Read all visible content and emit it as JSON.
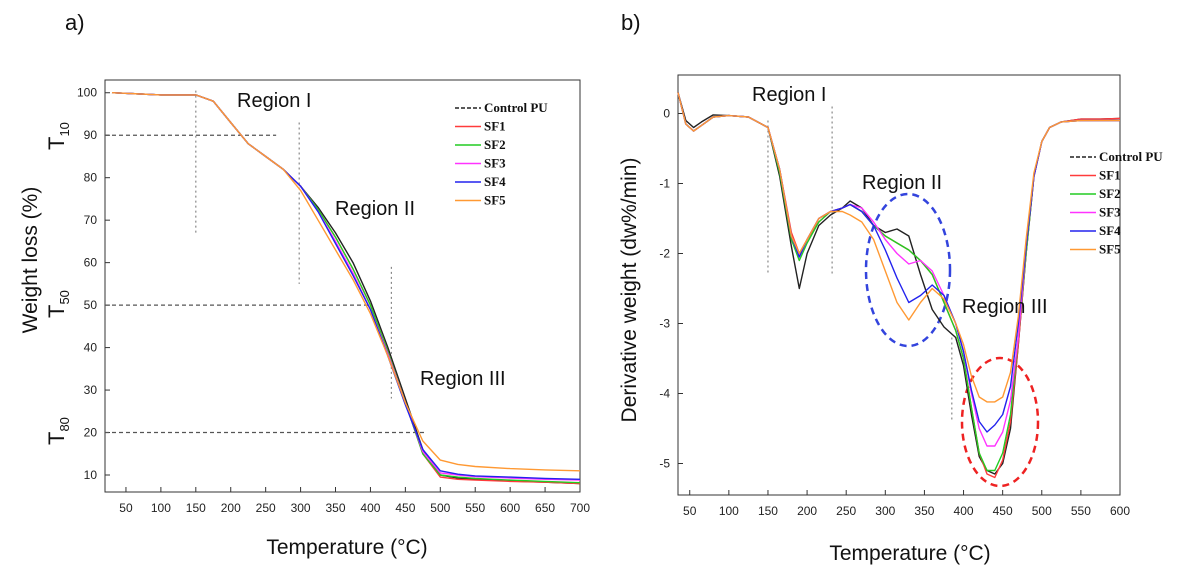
{
  "chart_data": [
    {
      "type": "line",
      "panel_label": "a)",
      "title": "",
      "xlabel": "Temperature (°C)",
      "ylabel": "Weight loss (%)",
      "xlim": [
        20,
        700
      ],
      "ylim": [
        6,
        103
      ],
      "xticks": [
        50,
        100,
        150,
        200,
        250,
        300,
        350,
        400,
        450,
        500,
        550,
        600,
        650,
        700
      ],
      "yticks": [
        10,
        20,
        30,
        40,
        50,
        60,
        70,
        80,
        90,
        100
      ],
      "grid": false,
      "legend_position": "top-right",
      "colors": {
        "Control PU": "#222222",
        "SF1": "#ff3b3b",
        "SF2": "#22cc22",
        "SF3": "#ff33ff",
        "SF4": "#2222ee",
        "SF5": "#ff9933"
      },
      "series": [
        {
          "name": "Control PU",
          "x": [
            30,
            100,
            150,
            175,
            200,
            225,
            250,
            275,
            300,
            325,
            350,
            375,
            400,
            425,
            450,
            475,
            500,
            525,
            550,
            600,
            650,
            700
          ],
          "y": [
            100,
            99.5,
            99.5,
            98,
            93,
            88,
            85,
            82,
            78,
            73,
            67,
            60,
            51,
            40,
            28,
            16,
            10,
            9.3,
            9,
            8.6,
            8.3,
            8
          ]
        },
        {
          "name": "SF1",
          "x": [
            30,
            100,
            150,
            175,
            200,
            225,
            250,
            275,
            300,
            325,
            350,
            375,
            400,
            425,
            450,
            475,
            500,
            525,
            550,
            600,
            650,
            700
          ],
          "y": [
            100,
            99.5,
            99.5,
            98,
            93,
            88,
            85,
            82,
            78,
            72.5,
            66,
            58.5,
            50,
            39,
            27,
            15,
            9.5,
            9,
            8.8,
            8.5,
            8.3,
            8
          ]
        },
        {
          "name": "SF2",
          "x": [
            30,
            100,
            150,
            175,
            200,
            225,
            250,
            275,
            300,
            325,
            350,
            375,
            400,
            425,
            450,
            475,
            500,
            525,
            550,
            600,
            650,
            700
          ],
          "y": [
            100,
            99.5,
            99.5,
            98,
            93,
            88,
            85,
            82,
            78,
            72.5,
            66,
            58.5,
            50,
            39,
            27,
            15,
            10,
            9.5,
            9.2,
            8.8,
            8.5,
            8.2
          ]
        },
        {
          "name": "SF3",
          "x": [
            30,
            100,
            150,
            175,
            200,
            225,
            250,
            275,
            300,
            325,
            350,
            375,
            400,
            425,
            450,
            475,
            500,
            525,
            550,
            600,
            650,
            700
          ],
          "y": [
            100,
            99.5,
            99.5,
            98,
            93,
            88,
            85,
            82,
            78,
            72,
            65,
            57.5,
            49,
            38.5,
            27,
            15.5,
            10.5,
            10,
            9.6,
            9.3,
            9,
            8.8
          ]
        },
        {
          "name": "SF4",
          "x": [
            30,
            100,
            150,
            175,
            200,
            225,
            250,
            275,
            300,
            325,
            350,
            375,
            400,
            425,
            450,
            475,
            500,
            525,
            550,
            600,
            650,
            700
          ],
          "y": [
            100,
            99.5,
            99.5,
            98,
            93,
            88,
            85,
            82,
            78,
            72,
            64.5,
            57,
            49,
            38,
            26.5,
            16,
            11,
            10.2,
            9.8,
            9.5,
            9.2,
            9
          ]
        },
        {
          "name": "SF5",
          "x": [
            30,
            100,
            150,
            175,
            200,
            225,
            250,
            275,
            300,
            325,
            350,
            375,
            400,
            425,
            450,
            475,
            500,
            525,
            550,
            600,
            650,
            700
          ],
          "y": [
            100,
            99.5,
            99.5,
            98,
            93,
            88,
            85,
            82,
            77,
            70,
            63,
            56,
            48,
            38,
            27,
            18,
            13.5,
            12.5,
            12,
            11.5,
            11.2,
            11
          ]
        }
      ],
      "annotations": {
        "regions": [
          "Region I",
          "Region II",
          "Region III"
        ],
        "thresholds": [
          {
            "main": "T",
            "sub": "10",
            "value": 90
          },
          {
            "main": "T",
            "sub": "50",
            "value": 50
          },
          {
            "main": "T",
            "sub": "80",
            "value": 20
          }
        ]
      }
    },
    {
      "type": "line",
      "panel_label": "b)",
      "title": "",
      "xlabel": "Temperature (°C)",
      "ylabel": "Derivative weight (dw%/min)",
      "xlim": [
        35,
        600
      ],
      "ylim": [
        -5.45,
        0.55
      ],
      "xticks": [
        50,
        100,
        150,
        200,
        250,
        300,
        350,
        400,
        450,
        500,
        550,
        600
      ],
      "yticks": [
        0,
        -1,
        -2,
        -3,
        -4,
        -5
      ],
      "grid": false,
      "legend_position": "right",
      "colors": {
        "Control PU": "#222222",
        "SF1": "#ff3b3b",
        "SF2": "#22cc22",
        "SF3": "#ff33ff",
        "SF4": "#2222ee",
        "SF5": "#ff9933"
      },
      "series": [
        {
          "name": "Control PU",
          "x": [
            35,
            45,
            55,
            65,
            80,
            100,
            125,
            150,
            165,
            180,
            190,
            200,
            215,
            230,
            245,
            255,
            270,
            285,
            300,
            315,
            330,
            345,
            360,
            375,
            390,
            400,
            410,
            420,
            430,
            440,
            450,
            460,
            470,
            480,
            490,
            500,
            510,
            525,
            550,
            575,
            600
          ],
          "y": [
            0.3,
            -0.1,
            -0.2,
            -0.12,
            -0.02,
            -0.03,
            -0.05,
            -0.2,
            -0.9,
            -1.9,
            -2.5,
            -2.0,
            -1.6,
            -1.45,
            -1.35,
            -1.25,
            -1.35,
            -1.6,
            -1.7,
            -1.65,
            -1.75,
            -2.3,
            -2.8,
            -3.05,
            -3.2,
            -3.6,
            -4.3,
            -4.9,
            -5.1,
            -5.15,
            -5.0,
            -4.5,
            -3.3,
            -2.0,
            -0.9,
            -0.4,
            -0.2,
            -0.12,
            -0.08,
            -0.08,
            -0.07
          ]
        },
        {
          "name": "SF1",
          "x": [
            35,
            45,
            55,
            65,
            80,
            100,
            125,
            150,
            165,
            180,
            190,
            200,
            215,
            230,
            245,
            255,
            270,
            285,
            300,
            315,
            330,
            345,
            360,
            375,
            390,
            400,
            410,
            420,
            430,
            440,
            450,
            460,
            470,
            480,
            490,
            500,
            510,
            525,
            550,
            575,
            600
          ],
          "y": [
            0.3,
            -0.15,
            -0.25,
            -0.17,
            -0.05,
            -0.03,
            -0.05,
            -0.2,
            -0.8,
            -1.7,
            -2.0,
            -1.8,
            -1.55,
            -1.4,
            -1.35,
            -1.3,
            -1.4,
            -1.6,
            -1.75,
            -1.85,
            -1.95,
            -2.1,
            -2.3,
            -2.7,
            -3.1,
            -3.5,
            -4.2,
            -4.85,
            -5.15,
            -5.2,
            -4.95,
            -4.4,
            -3.3,
            -2.0,
            -0.9,
            -0.4,
            -0.2,
            -0.12,
            -0.08,
            -0.08,
            -0.07
          ]
        },
        {
          "name": "SF2",
          "x": [
            35,
            45,
            55,
            65,
            80,
            100,
            125,
            150,
            165,
            180,
            190,
            200,
            215,
            230,
            245,
            255,
            270,
            285,
            300,
            315,
            330,
            345,
            360,
            375,
            390,
            400,
            410,
            420,
            430,
            440,
            450,
            460,
            470,
            480,
            490,
            500,
            510,
            525,
            550,
            575,
            600
          ],
          "y": [
            0.3,
            -0.15,
            -0.25,
            -0.17,
            -0.05,
            -0.03,
            -0.05,
            -0.2,
            -0.85,
            -1.8,
            -2.1,
            -1.85,
            -1.55,
            -1.4,
            -1.35,
            -1.3,
            -1.4,
            -1.6,
            -1.75,
            -1.85,
            -1.95,
            -2.1,
            -2.3,
            -2.7,
            -3.1,
            -3.5,
            -4.2,
            -4.85,
            -5.1,
            -5.1,
            -4.85,
            -4.3,
            -3.2,
            -2.0,
            -0.9,
            -0.4,
            -0.2,
            -0.12,
            -0.1,
            -0.1,
            -0.1
          ]
        },
        {
          "name": "SF3",
          "x": [
            35,
            45,
            55,
            65,
            80,
            100,
            125,
            150,
            165,
            180,
            190,
            200,
            215,
            230,
            245,
            255,
            270,
            285,
            300,
            315,
            330,
            345,
            360,
            375,
            390,
            400,
            410,
            420,
            430,
            440,
            450,
            460,
            470,
            480,
            490,
            500,
            510,
            525,
            550,
            575,
            600
          ],
          "y": [
            0.3,
            -0.15,
            -0.25,
            -0.17,
            -0.05,
            -0.03,
            -0.05,
            -0.2,
            -0.8,
            -1.75,
            -2.05,
            -1.8,
            -1.5,
            -1.4,
            -1.35,
            -1.3,
            -1.35,
            -1.55,
            -1.8,
            -2.0,
            -2.15,
            -2.1,
            -2.25,
            -2.6,
            -3.0,
            -3.4,
            -4.0,
            -4.5,
            -4.75,
            -4.75,
            -4.55,
            -4.1,
            -3.2,
            -1.9,
            -0.9,
            -0.4,
            -0.2,
            -0.12,
            -0.1,
            -0.1,
            -0.1
          ]
        },
        {
          "name": "SF4",
          "x": [
            35,
            45,
            55,
            65,
            80,
            100,
            125,
            150,
            165,
            180,
            190,
            200,
            215,
            230,
            245,
            255,
            270,
            285,
            300,
            315,
            330,
            345,
            360,
            375,
            390,
            400,
            410,
            420,
            430,
            440,
            450,
            460,
            470,
            480,
            490,
            500,
            510,
            525,
            550,
            575,
            600
          ],
          "y": [
            0.3,
            -0.15,
            -0.25,
            -0.17,
            -0.05,
            -0.03,
            -0.05,
            -0.2,
            -0.8,
            -1.75,
            -2.05,
            -1.8,
            -1.5,
            -1.4,
            -1.35,
            -1.3,
            -1.4,
            -1.6,
            -1.95,
            -2.35,
            -2.7,
            -2.6,
            -2.45,
            -2.6,
            -3.0,
            -3.4,
            -3.95,
            -4.4,
            -4.55,
            -4.45,
            -4.3,
            -3.9,
            -3.0,
            -1.9,
            -0.9,
            -0.4,
            -0.2,
            -0.12,
            -0.1,
            -0.1,
            -0.1
          ]
        },
        {
          "name": "SF5",
          "x": [
            35,
            45,
            55,
            65,
            80,
            100,
            125,
            150,
            165,
            180,
            190,
            200,
            215,
            230,
            245,
            255,
            270,
            285,
            300,
            315,
            330,
            345,
            360,
            375,
            390,
            400,
            410,
            420,
            430,
            440,
            450,
            460,
            470,
            480,
            490,
            500,
            510,
            525,
            550,
            575,
            600
          ],
          "y": [
            0.3,
            -0.15,
            -0.25,
            -0.17,
            -0.05,
            -0.03,
            -0.05,
            -0.2,
            -0.8,
            -1.75,
            -2.0,
            -1.8,
            -1.5,
            -1.4,
            -1.4,
            -1.45,
            -1.55,
            -1.8,
            -2.25,
            -2.7,
            -2.95,
            -2.7,
            -2.5,
            -2.65,
            -3.0,
            -3.3,
            -3.75,
            -4.05,
            -4.12,
            -4.12,
            -4.05,
            -3.7,
            -2.9,
            -1.8,
            -0.85,
            -0.4,
            -0.2,
            -0.12,
            -0.1,
            -0.1,
            -0.1
          ]
        }
      ],
      "annotations": {
        "regions": [
          "Region I",
          "Region II",
          "Region III"
        ]
      }
    }
  ]
}
